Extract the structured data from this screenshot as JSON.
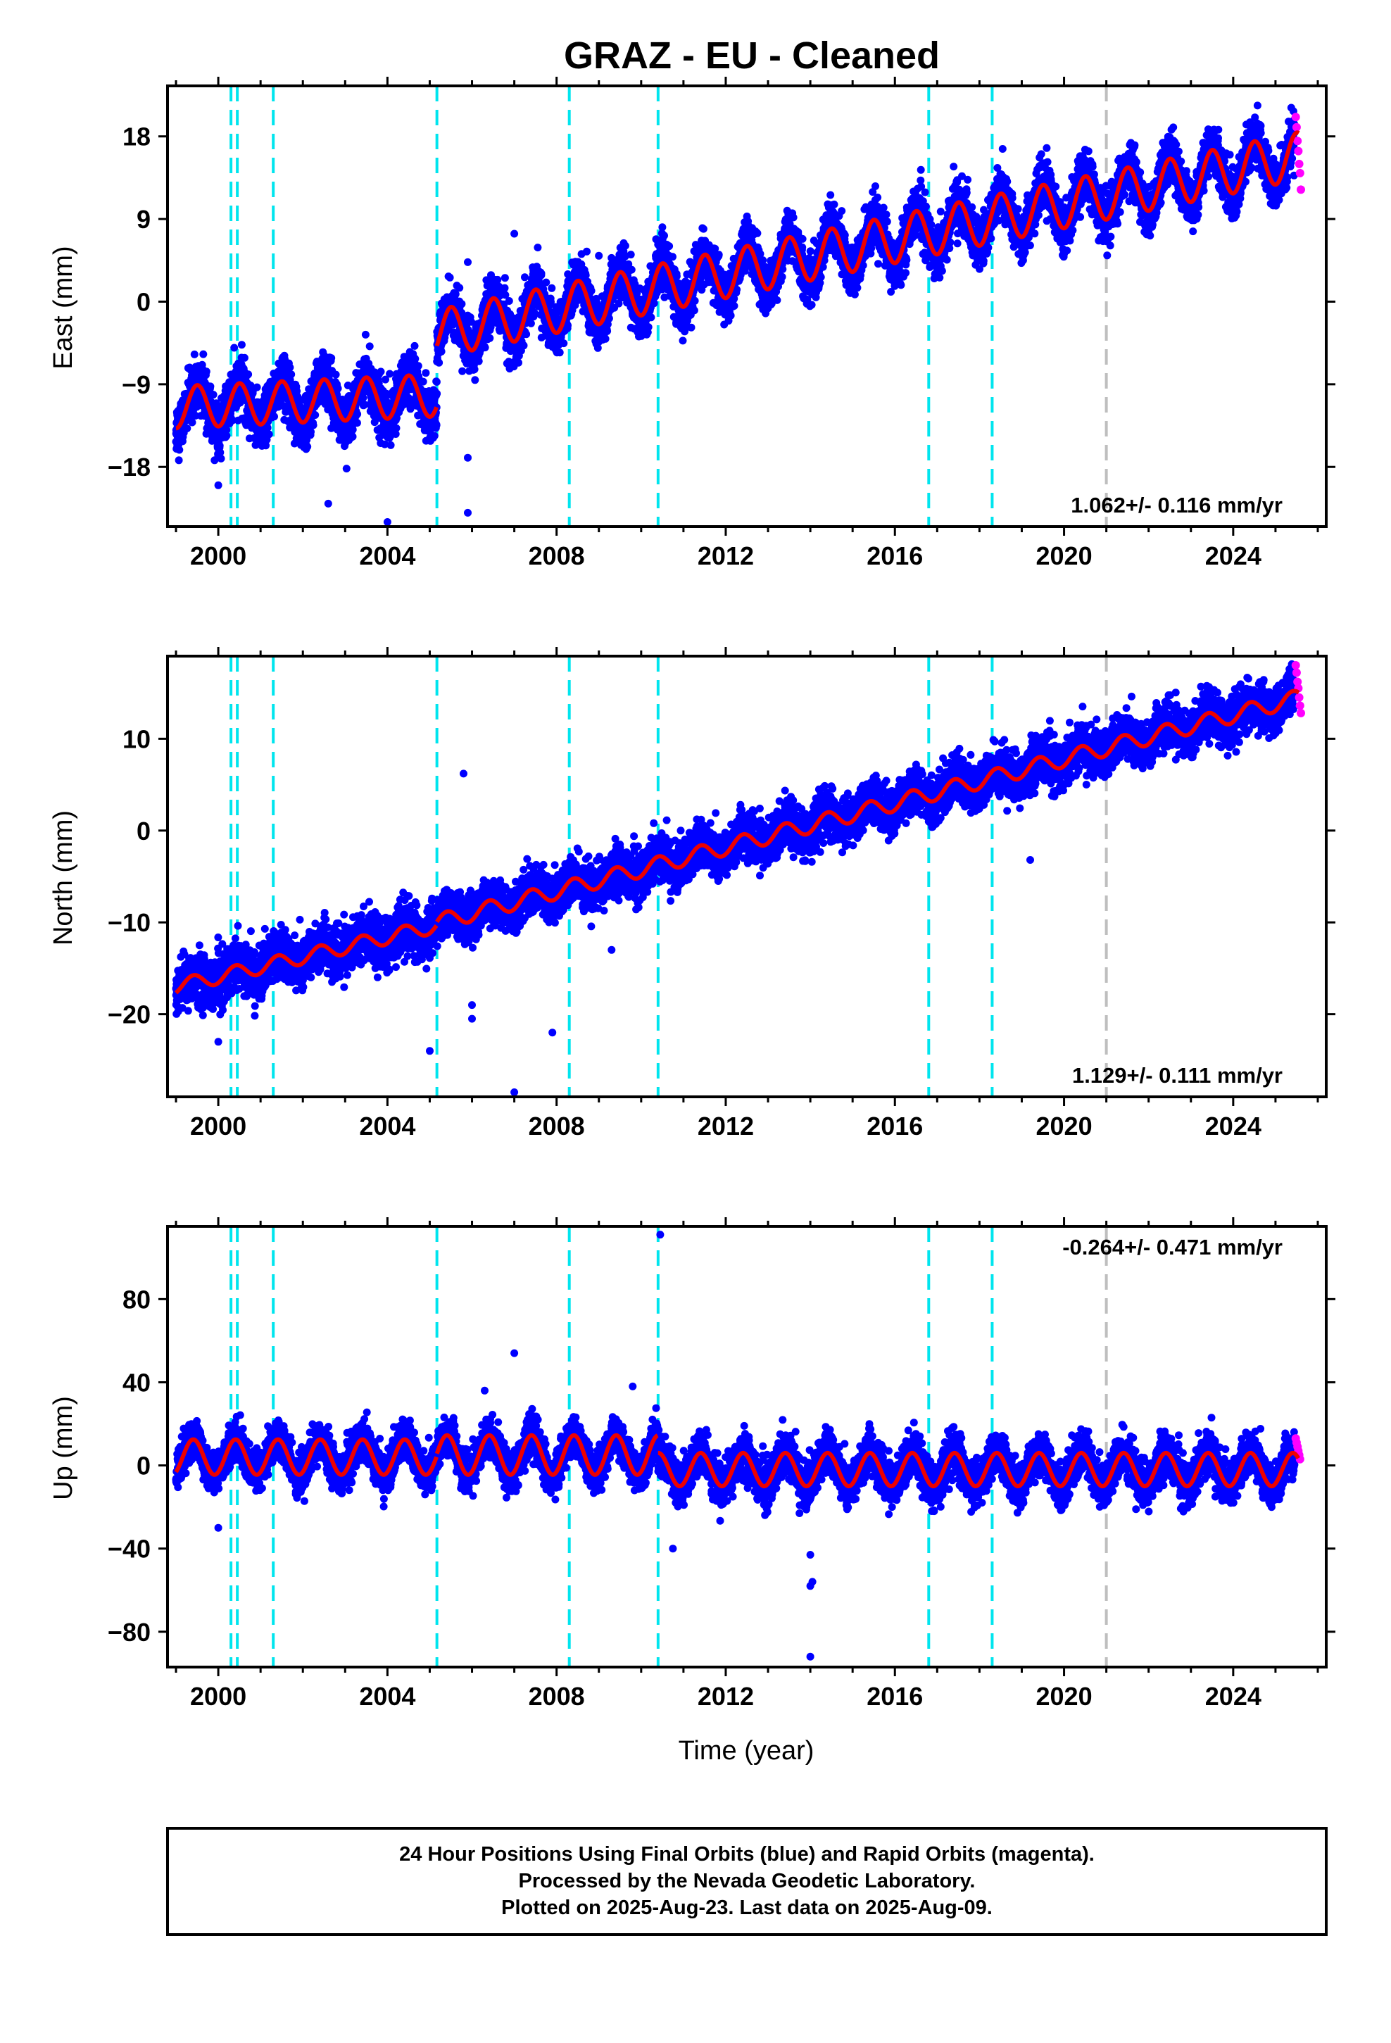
{
  "chart_data": [
    {
      "type": "scatter",
      "title": "GRAZ  - EU - Cleaned",
      "ylabel": "East (mm)",
      "xlabel": "",
      "xlim": [
        1998.8,
        2026.2
      ],
      "ylim": [
        -24.5,
        23.5
      ],
      "xticks": [
        2000,
        2004,
        2008,
        2012,
        2016,
        2020,
        2024
      ],
      "xtick_labels": [
        "2000",
        "2004",
        "2008",
        "2012",
        "2016",
        "2020",
        "2024"
      ],
      "yticks": [
        18,
        9,
        0,
        -9,
        -18
      ],
      "ytick_labels": [
        "18",
        "9",
        "0",
        "−9",
        "−18"
      ],
      "rate_label": "1.062+/- 0.116 mm/yr",
      "rate_position": "bottom-right",
      "equipment_changes": [
        2000.3,
        2000.45,
        2001.3,
        2005.17,
        2008.3,
        2010.4,
        2016.8,
        2018.3
      ],
      "other_changes": [
        2021.0
      ],
      "series": [
        {
          "name": "Final Orbits",
          "kind": "points",
          "color": "#0000ff",
          "segments": [
            {
              "start": 1999.0,
              "end": 2005.17,
              "v0": -11.5,
              "rate": 0.21,
              "amp": 2.3,
              "phase": -1.6,
              "noise": 1.4
            },
            {
              "start": 2005.17,
              "end": 2025.45,
              "v0": -3.5,
              "rate": 0.95,
              "amp": 2.6,
              "phase": -1.6,
              "noise": 1.3
            }
          ],
          "outliers": [
            [
              2005.9,
              4.3
            ],
            [
              2007.0,
              7.4
            ],
            [
              2004.0,
              -24.0
            ],
            [
              2005.9,
              -17.0
            ],
            [
              2005.9,
              -23.0
            ],
            [
              2010.5,
              8.1
            ],
            [
              2009.0,
              5.0
            ],
            [
              2002.6,
              -22.0
            ],
            [
              2000.0,
              -20.0
            ]
          ]
        },
        {
          "name": "Rapid Orbits",
          "kind": "points",
          "color": "#ff00ff",
          "points": [
            [
              2025.48,
              20.1
            ],
            [
              2025.5,
              19.0
            ],
            [
              2025.52,
              17.5
            ],
            [
              2025.54,
              16.4
            ],
            [
              2025.56,
              15.0
            ],
            [
              2025.58,
              14.0
            ],
            [
              2025.6,
              12.2
            ]
          ]
        },
        {
          "name": "Model",
          "kind": "line",
          "color": "#ee0000",
          "segments": [
            {
              "start": 1999.0,
              "end": 2005.17,
              "v0": -11.5,
              "rate": 0.21,
              "amp": 2.3,
              "phase": -1.6
            },
            {
              "start": 2005.17,
              "end": 2025.55,
              "v0": -3.5,
              "rate": 0.95,
              "amp": 2.6,
              "phase": -1.6
            }
          ]
        }
      ]
    },
    {
      "type": "scatter",
      "ylabel": "North (mm)",
      "xlabel": "",
      "xlim": [
        1998.8,
        2026.2
      ],
      "ylim": [
        -29,
        19
      ],
      "xticks": [
        2000,
        2004,
        2008,
        2012,
        2016,
        2020,
        2024
      ],
      "xtick_labels": [
        "2000",
        "2004",
        "2008",
        "2012",
        "2016",
        "2020",
        "2024"
      ],
      "yticks": [
        10,
        0,
        -10,
        -20
      ],
      "ytick_labels": [
        "10",
        "0",
        "−10",
        "−20"
      ],
      "rate_label": "1.129+/- 0.111 mm/yr",
      "rate_position": "bottom-right",
      "equipment_changes": [
        2000.3,
        2000.45,
        2001.3,
        2005.17,
        2008.3,
        2010.4,
        2016.8,
        2018.3
      ],
      "other_changes": [
        2021.0
      ],
      "series": [
        {
          "name": "Final Orbits",
          "kind": "points",
          "color": "#0000ff",
          "segments": [
            {
              "start": 1999.0,
              "end": 2005.17,
              "v0": -17.0,
              "rate": 1.08,
              "amp": 0.8,
              "phase": -1.0,
              "noise": 1.3
            },
            {
              "start": 2005.17,
              "end": 2025.45,
              "v0": -10.0,
              "rate": 1.2,
              "amp": 0.9,
              "phase": -1.0,
              "noise": 1.2
            }
          ],
          "outliers": [
            [
              2005.8,
              6.2
            ],
            [
              2005.0,
              -24.0
            ],
            [
              2006.0,
              -19.0
            ],
            [
              2006.0,
              -20.5
            ],
            [
              2007.9,
              -22.0
            ],
            [
              2009.3,
              -13.0
            ],
            [
              2007.0,
              -28.5
            ],
            [
              2019.2,
              -3.2
            ],
            [
              2019.6,
              10.7
            ],
            [
              2000.0,
              -23.0
            ]
          ]
        },
        {
          "name": "Rapid Orbits",
          "kind": "points",
          "color": "#ff00ff",
          "points": [
            [
              2025.48,
              18.0
            ],
            [
              2025.5,
              17.2
            ],
            [
              2025.52,
              16.2
            ],
            [
              2025.54,
              15.5
            ],
            [
              2025.56,
              14.5
            ],
            [
              2025.58,
              13.6
            ],
            [
              2025.6,
              12.8
            ]
          ]
        },
        {
          "name": "Model",
          "kind": "line",
          "color": "#ee0000",
          "segments": [
            {
              "start": 1999.0,
              "end": 2005.17,
              "v0": -17.0,
              "rate": 1.08,
              "amp": 0.8,
              "phase": -1.0
            },
            {
              "start": 2005.17,
              "end": 2025.55,
              "v0": -10.0,
              "rate": 1.2,
              "amp": 0.9,
              "phase": -1.0
            }
          ]
        }
      ]
    },
    {
      "type": "scatter",
      "ylabel": "Up (mm)",
      "xlabel": "Time (year)",
      "xlim": [
        1998.8,
        2026.2
      ],
      "ylim": [
        -97,
        115
      ],
      "xticks": [
        2000,
        2004,
        2008,
        2012,
        2016,
        2020,
        2024
      ],
      "xtick_labels": [
        "2000",
        "2004",
        "2008",
        "2012",
        "2016",
        "2020",
        "2024"
      ],
      "yticks": [
        80,
        40,
        0,
        -40,
        -80
      ],
      "ytick_labels": [
        "80",
        "40",
        "0",
        "−40",
        "−80"
      ],
      "rate_label": "-0.264+/- 0.471 mm/yr",
      "rate_position": "top-right",
      "equipment_changes": [
        2000.3,
        2000.45,
        2001.3,
        2005.17,
        2008.3,
        2010.4,
        2016.8,
        2018.3
      ],
      "other_changes": [
        2021.0
      ],
      "series": [
        {
          "name": "Final Orbits",
          "kind": "points",
          "color": "#0000ff",
          "segments": [
            {
              "start": 1999.0,
              "end": 2005.17,
              "v0": 4.0,
              "rate": 0.0,
              "amp": 8.5,
              "phase": -1.0,
              "noise": 4.5
            },
            {
              "start": 2005.17,
              "end": 2010.4,
              "v0": 5.0,
              "rate": 0.0,
              "amp": 9.5,
              "phase": -1.0,
              "noise": 4.5
            },
            {
              "start": 2010.4,
              "end": 2025.45,
              "v0": -2.0,
              "rate": 0.0,
              "amp": 8.0,
              "phase": -1.0,
              "noise": 5.0
            }
          ],
          "outliers": [
            [
              2010.45,
              111
            ],
            [
              2007.0,
              54
            ],
            [
              2009.8,
              38
            ],
            [
              2006.3,
              36
            ],
            [
              2014.0,
              -43
            ],
            [
              2014.0,
              -58
            ],
            [
              2014.05,
              -56
            ],
            [
              2014.0,
              -92
            ],
            [
              2010.75,
              -40
            ],
            [
              2000.0,
              -30
            ]
          ]
        },
        {
          "name": "Rapid Orbits",
          "kind": "points",
          "color": "#ff00ff",
          "points": [
            [
              2025.48,
              13.0
            ],
            [
              2025.5,
              11.0
            ],
            [
              2025.52,
              9.0
            ],
            [
              2025.54,
              7.0
            ],
            [
              2025.56,
              5.0
            ],
            [
              2025.58,
              3.0
            ]
          ]
        },
        {
          "name": "Model",
          "kind": "line",
          "color": "#ee0000",
          "segments": [
            {
              "start": 1999.0,
              "end": 2005.17,
              "v0": 4.0,
              "rate": 0.0,
              "amp": 8.5,
              "phase": -1.0
            },
            {
              "start": 2005.17,
              "end": 2010.4,
              "v0": 5.0,
              "rate": 0.0,
              "amp": 9.5,
              "phase": -1.0
            },
            {
              "start": 2010.4,
              "end": 2025.55,
              "v0": -2.0,
              "rate": 0.0,
              "amp": 8.0,
              "phase": -1.0
            }
          ]
        }
      ]
    }
  ],
  "colors": {
    "final_orbits": "#0000ff",
    "rapid_orbits": "#ff00ff",
    "model": "#ee0000",
    "equipment_change": "#00e5ee",
    "other_change": "#bebebe"
  },
  "footer": {
    "line1": "24 Hour Positions Using Final Orbits (blue) and Rapid Orbits (magenta).",
    "line2": "Processed by the Nevada Geodetic Laboratory.",
    "line3": "Plotted on 2025-Aug-23. Last data on 2025-Aug-09."
  }
}
